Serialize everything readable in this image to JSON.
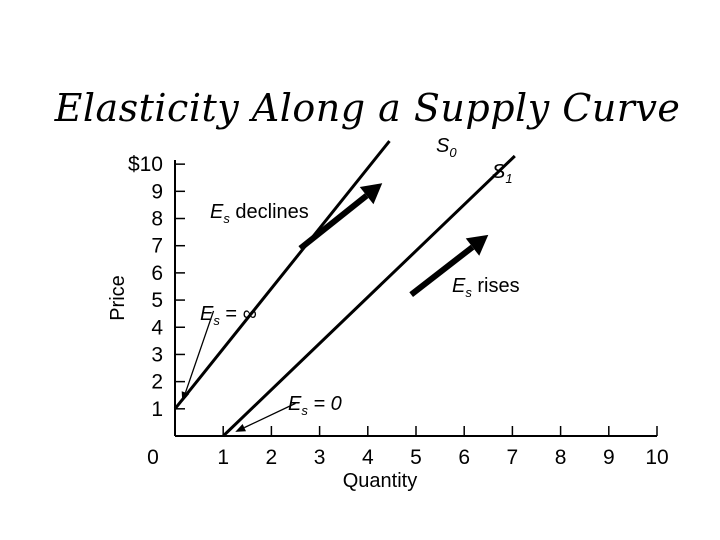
{
  "chart_data": {
    "type": "line",
    "title": "Elasticity Along a Supply Curve",
    "xlabel": "Quantity",
    "ylabel": "Price",
    "xlim": [
      0,
      10
    ],
    "ylim": [
      0,
      10
    ],
    "x_ticks": [
      "0",
      "1",
      "2",
      "3",
      "4",
      "5",
      "6",
      "7",
      "8",
      "9",
      "10"
    ],
    "y_ticks": [
      "1",
      "2",
      "3",
      "4",
      "5",
      "6",
      "7",
      "8",
      "9",
      "$10"
    ],
    "y_tick_values": [
      1,
      2,
      3,
      4,
      5,
      6,
      7,
      8,
      9,
      10
    ],
    "series": [
      {
        "name": "S0",
        "base": "S",
        "sub": "0",
        "x": [
          0,
          4.45
        ],
        "y": [
          1,
          10.85
        ]
      },
      {
        "name": "S1",
        "base": "S",
        "sub": "1",
        "x": [
          1,
          7.05
        ],
        "y": [
          0,
          10.3
        ]
      }
    ],
    "annotations": [
      {
        "id": "declines",
        "base": "E",
        "sub": "s",
        "rest": " declines"
      },
      {
        "id": "rises",
        "base": "E",
        "sub": "s",
        "rest": " rises"
      },
      {
        "id": "infinite",
        "base": "E",
        "sub": "s",
        "rest": " = ∞"
      },
      {
        "id": "zero",
        "base": "E",
        "sub": "s",
        "rest": " = 0"
      }
    ],
    "arrows": [
      {
        "id": "declines-arrow",
        "from": [
          2.6,
          6.9
        ],
        "to": [
          4.3,
          9.3
        ]
      },
      {
        "id": "rises-arrow",
        "from": [
          4.9,
          5.2
        ],
        "to": [
          6.5,
          7.4
        ]
      }
    ],
    "pointers": [
      {
        "id": "infinite-pointer",
        "from": [
          0.8,
          4.6
        ],
        "to": [
          0.15,
          1.25
        ]
      },
      {
        "id": "zero-pointer",
        "from": [
          2.5,
          1.2
        ],
        "to": [
          1.25,
          0.15
        ]
      }
    ]
  }
}
